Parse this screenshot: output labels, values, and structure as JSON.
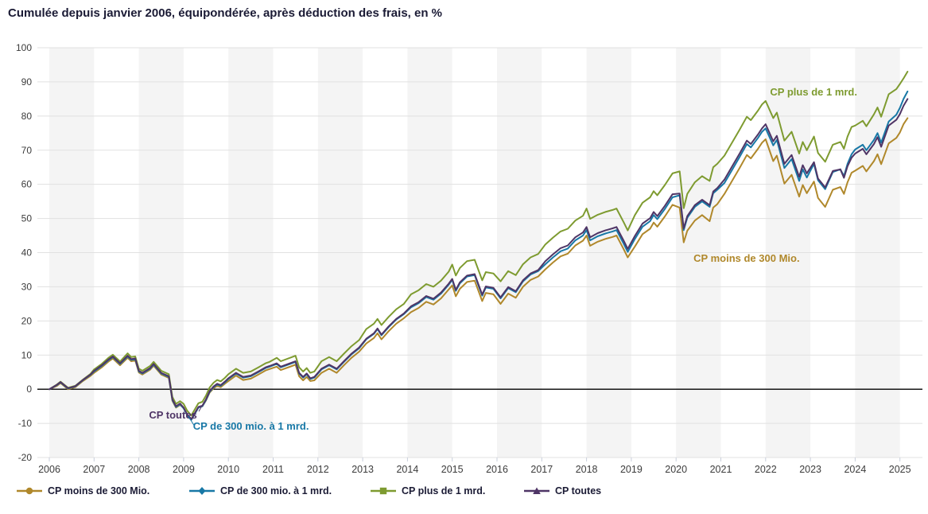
{
  "header": {
    "title": "Cumulée depuis janvier 2006, équipondérée, après déduction des frais, en %"
  },
  "chart_data": {
    "type": "line",
    "title": "Cumulée depuis janvier 2006, équipondérée, après déduction des frais, en %",
    "ylabel": "",
    "xlabel": "",
    "ylim": [
      -20,
      100
    ],
    "ytick_step": 10,
    "grid": "horizontal",
    "shaded_year_bands": "even years 2006-2024",
    "legend_position": "bottom",
    "yticks": [
      "100",
      "90",
      "80",
      "70",
      "60",
      "50",
      "40",
      "30",
      "20",
      "10",
      "0",
      "-10",
      "-20"
    ],
    "xticks": [
      "2006",
      "2007",
      "2008",
      "2009",
      "2010",
      "2011",
      "2012",
      "2013",
      "2014",
      "2015",
      "2016",
      "2017",
      "2018",
      "2019",
      "2020",
      "2021",
      "2022",
      "2023",
      "2024",
      "2025"
    ],
    "colors": {
      "band": "#F4F4F4",
      "grid": "#E1E1E1",
      "zero_line": "#000000",
      "axis_text": "#3C3C3C",
      "tick_mark": "#C9CFDB",
      "heading_text": "#1B1B35"
    },
    "x": [
      2006.0,
      2006.17,
      2006.25,
      2006.42,
      2006.58,
      2006.75,
      2006.92,
      2007.0,
      2007.17,
      2007.33,
      2007.42,
      2007.58,
      2007.75,
      2007.83,
      2007.92,
      2008.0,
      2008.08,
      2008.25,
      2008.33,
      2008.5,
      2008.67,
      2008.75,
      2008.83,
      2008.92,
      2009.0,
      2009.08,
      2009.17,
      2009.25,
      2009.33,
      2009.42,
      2009.5,
      2009.58,
      2009.67,
      2009.75,
      2009.83,
      2009.92,
      2010.0,
      2010.17,
      2010.33,
      2010.5,
      2010.67,
      2010.83,
      2010.92,
      2011.08,
      2011.17,
      2011.42,
      2011.5,
      2011.58,
      2011.67,
      2011.75,
      2011.83,
      2011.92,
      2012.08,
      2012.25,
      2012.42,
      2012.58,
      2012.75,
      2012.92,
      2013.08,
      2013.25,
      2013.33,
      2013.42,
      2013.58,
      2013.75,
      2013.92,
      2014.08,
      2014.25,
      2014.42,
      2014.58,
      2014.75,
      2014.92,
      2015.0,
      2015.08,
      2015.17,
      2015.33,
      2015.5,
      2015.67,
      2015.75,
      2015.92,
      2016.08,
      2016.25,
      2016.42,
      2016.58,
      2016.75,
      2016.92,
      2017.08,
      2017.25,
      2017.42,
      2017.58,
      2017.75,
      2017.92,
      2018.0,
      2018.08,
      2018.25,
      2018.42,
      2018.58,
      2018.67,
      2018.83,
      2018.92,
      2019.08,
      2019.25,
      2019.42,
      2019.5,
      2019.58,
      2019.75,
      2019.92,
      2020.08,
      2020.17,
      2020.25,
      2020.42,
      2020.58,
      2020.75,
      2020.83,
      2020.92,
      2021.08,
      2021.25,
      2021.42,
      2021.58,
      2021.67,
      2021.83,
      2021.92,
      2022.0,
      2022.17,
      2022.25,
      2022.42,
      2022.58,
      2022.75,
      2022.83,
      2022.92,
      2023.08,
      2023.17,
      2023.33,
      2023.5,
      2023.67,
      2023.75,
      2023.83,
      2023.92,
      2024.0,
      2024.17,
      2024.25,
      2024.42,
      2024.5,
      2024.58,
      2024.75,
      2024.92,
      2025.0,
      2025.08,
      2025.17
    ],
    "series": [
      {
        "id": "moins300",
        "name": "CP moins de 300 Mio.",
        "color": "#B0882B",
        "marker": "circle",
        "values": [
          0,
          1.0,
          1.8,
          0.0,
          0.6,
          2.4,
          3.9,
          4.8,
          6.4,
          8.2,
          9.0,
          7.0,
          9.2,
          8.2,
          8.4,
          4.9,
          4.3,
          5.7,
          6.9,
          4.3,
          3.3,
          -3.4,
          -5.4,
          -4.6,
          -5.4,
          -7.4,
          -8.8,
          -7.0,
          -5.3,
          -5.0,
          -3.3,
          -1.0,
          0.3,
          1.0,
          0.6,
          1.6,
          2.4,
          4.0,
          2.7,
          3.1,
          4.3,
          5.5,
          5.9,
          6.6,
          5.6,
          6.8,
          7.2,
          3.8,
          2.6,
          3.6,
          2.4,
          2.6,
          4.8,
          6.0,
          4.8,
          7.0,
          9.2,
          11.0,
          13.4,
          15.0,
          16.4,
          14.6,
          17.0,
          19.2,
          20.8,
          22.6,
          23.8,
          25.6,
          24.8,
          26.6,
          29.2,
          30.4,
          27.2,
          29.4,
          31.4,
          31.8,
          25.8,
          28.2,
          27.8,
          25.0,
          28.0,
          26.8,
          30.0,
          32.0,
          33.0,
          35.1,
          37.1,
          38.9,
          39.7,
          42.1,
          43.5,
          45.0,
          42.0,
          43.2,
          44.0,
          44.6,
          45.0,
          41.0,
          38.6,
          41.8,
          45.4,
          47.0,
          48.8,
          47.6,
          50.6,
          54.0,
          53.2,
          43.0,
          46.4,
          49.4,
          51.0,
          49.2,
          53.2,
          54.2,
          57.2,
          61.0,
          64.8,
          68.6,
          67.6,
          70.4,
          72.2,
          73.2,
          66.8,
          68.4,
          60.2,
          62.8,
          56.4,
          59.8,
          57.4,
          60.8,
          56.0,
          53.4,
          58.4,
          59.2,
          57.2,
          60.6,
          63.4,
          64.0,
          65.4,
          63.8,
          66.8,
          68.8,
          65.9,
          72.0,
          73.6,
          75.2,
          77.6,
          79.4
        ]
      },
      {
        "id": "de300a1",
        "name": "CP de 300 mio. à 1 mrd.",
        "color": "#1878A6",
        "marker": "diamond",
        "values": [
          0,
          1.2,
          2.0,
          0.2,
          0.8,
          2.6,
          4.2,
          5.2,
          6.8,
          8.6,
          9.4,
          7.4,
          9.6,
          8.6,
          8.8,
          5.2,
          4.6,
          6.0,
          7.2,
          4.6,
          3.6,
          -3.2,
          -5.2,
          -4.4,
          -5.6,
          -7.6,
          -9.0,
          -7.2,
          -5.4,
          -5.0,
          -3.2,
          -0.8,
          0.6,
          1.4,
          1.0,
          2.0,
          3.0,
          4.6,
          3.4,
          3.8,
          5.0,
          6.2,
          6.6,
          7.4,
          6.4,
          7.6,
          8.0,
          4.6,
          3.4,
          4.4,
          3.0,
          3.4,
          5.8,
          7.0,
          5.8,
          8.0,
          10.2,
          12.0,
          14.6,
          16.2,
          17.6,
          15.8,
          18.2,
          20.4,
          22.0,
          24.0,
          25.2,
          27.0,
          26.2,
          28.0,
          30.6,
          32.0,
          28.8,
          31.0,
          33.0,
          33.4,
          27.4,
          29.8,
          29.4,
          26.6,
          29.6,
          28.4,
          31.6,
          33.6,
          34.6,
          36.6,
          38.6,
          40.4,
          41.2,
          43.6,
          45.0,
          46.6,
          43.6,
          44.8,
          45.6,
          46.2,
          46.6,
          42.6,
          40.2,
          44.0,
          47.6,
          49.2,
          51.0,
          49.8,
          52.8,
          56.2,
          56.8,
          46.6,
          50.2,
          53.4,
          55.0,
          53.4,
          57.4,
          58.4,
          60.4,
          64.2,
          68.0,
          71.8,
          70.8,
          73.6,
          75.4,
          76.4,
          71.4,
          73.0,
          64.8,
          67.4,
          61.0,
          64.4,
          62.0,
          66.0,
          61.2,
          58.6,
          63.6,
          64.4,
          62.4,
          66.0,
          68.8,
          70.2,
          71.6,
          70.0,
          73.0,
          75.0,
          72.2,
          78.4,
          80.4,
          82.4,
          85.0,
          87.2
        ]
      },
      {
        "id": "plus1",
        "name": "CP plus de 1 mrd.",
        "color": "#7E9B30",
        "marker": "square",
        "values": [
          0,
          1.4,
          2.2,
          0.4,
          1.0,
          2.8,
          4.5,
          5.8,
          7.4,
          9.3,
          10.1,
          8.1,
          10.5,
          9.4,
          9.6,
          6.0,
          5.4,
          6.8,
          8.0,
          5.4,
          4.4,
          -2.3,
          -4.3,
          -3.5,
          -4.3,
          -6.3,
          -7.7,
          -5.9,
          -4.1,
          -3.7,
          -1.9,
          0.5,
          1.9,
          2.7,
          2.3,
          3.3,
          4.4,
          6.0,
          4.8,
          5.2,
          6.4,
          7.6,
          8.0,
          9.2,
          8.2,
          9.4,
          9.8,
          6.4,
          5.2,
          6.2,
          4.8,
          5.2,
          8.2,
          9.4,
          8.2,
          10.4,
          12.6,
          14.4,
          17.6,
          19.2,
          20.6,
          18.8,
          21.2,
          23.4,
          25.0,
          27.8,
          29.0,
          30.8,
          30.0,
          31.8,
          34.4,
          36.5,
          33.3,
          35.5,
          37.5,
          37.9,
          31.9,
          34.3,
          33.9,
          31.6,
          34.6,
          33.4,
          36.6,
          38.6,
          39.6,
          42.4,
          44.4,
          46.2,
          47.0,
          49.4,
          50.8,
          52.9,
          49.9,
          51.1,
          51.9,
          52.5,
          52.9,
          48.9,
          46.5,
          51.0,
          54.6,
          56.2,
          58.0,
          56.8,
          59.8,
          63.2,
          63.8,
          53.0,
          57.2,
          60.6,
          62.4,
          61.0,
          65.0,
          66.0,
          68.4,
          72.2,
          76.0,
          79.8,
          78.8,
          81.6,
          83.4,
          84.4,
          79.4,
          81.0,
          72.8,
          75.4,
          69.0,
          72.4,
          70.0,
          74.0,
          69.2,
          66.6,
          71.6,
          72.4,
          70.4,
          74.0,
          76.8,
          77.2,
          78.6,
          77.0,
          80.5,
          82.5,
          79.8,
          86.4,
          87.9,
          89.4,
          91.0,
          93.0
        ]
      },
      {
        "id": "toutes",
        "name": "CP toutes",
        "color": "#4F3566",
        "marker": "triangle",
        "values": [
          0,
          1.3,
          2.1,
          0.3,
          0.9,
          2.7,
          4.3,
          5.4,
          7.0,
          8.8,
          9.6,
          7.6,
          9.8,
          8.8,
          9.0,
          5.4,
          4.8,
          6.2,
          7.4,
          4.8,
          3.8,
          -3.0,
          -5.0,
          -4.2,
          -5.4,
          -7.4,
          -8.8,
          -7.0,
          -5.2,
          -4.8,
          -3.0,
          -0.6,
          0.8,
          1.6,
          1.2,
          2.2,
          3.2,
          4.8,
          3.6,
          4.0,
          5.2,
          6.4,
          6.8,
          7.6,
          6.6,
          7.8,
          8.2,
          4.8,
          3.6,
          4.6,
          3.2,
          3.6,
          6.0,
          7.2,
          6.0,
          8.2,
          10.4,
          12.2,
          14.8,
          16.4,
          17.8,
          16.0,
          18.4,
          20.6,
          22.2,
          24.3,
          25.5,
          27.3,
          26.5,
          28.3,
          30.9,
          32.3,
          29.1,
          31.3,
          33.3,
          33.7,
          27.7,
          30.1,
          29.7,
          26.9,
          29.9,
          28.7,
          31.9,
          33.9,
          34.9,
          37.5,
          39.5,
          41.3,
          42.1,
          44.5,
          45.9,
          47.5,
          44.5,
          45.7,
          46.5,
          47.1,
          47.5,
          43.5,
          41.1,
          44.9,
          48.5,
          50.1,
          51.9,
          50.7,
          53.7,
          57.1,
          57.3,
          47.1,
          50.7,
          53.9,
          55.5,
          53.9,
          57.9,
          58.9,
          61.4,
          65.2,
          69.0,
          72.8,
          71.8,
          74.6,
          76.4,
          77.6,
          72.6,
          74.2,
          66.0,
          68.6,
          62.2,
          65.6,
          63.2,
          66.5,
          61.7,
          59.1,
          63.9,
          64.4,
          61.9,
          65.3,
          67.8,
          69.0,
          70.4,
          68.8,
          71.8,
          73.8,
          71.0,
          77.2,
          78.9,
          80.6,
          83.0,
          85.0
        ]
      }
    ],
    "draw_order": [
      "plus1",
      "moins300",
      "de300a1",
      "toutes"
    ],
    "annotations": [
      {
        "text": "CP plus de 1 mrd.",
        "series": "plus1",
        "x": 2022.1,
        "y": 86.0,
        "anchor": "start"
      },
      {
        "text": "CP moins de 300 Mio.",
        "series": "moins300",
        "x": 2020.39,
        "y": 37.3,
        "anchor": "start"
      },
      {
        "text": "CP toutes",
        "series": "toutes",
        "x": 2009.3,
        "y": -8.6,
        "anchor": "end",
        "leader": [
          [
            2009.34,
            -6.5
          ],
          [
            2009.46,
            -3.7
          ]
        ]
      },
      {
        "text": "CP de 300 mio. à 1 mrd.",
        "series": "de300a1",
        "x": 2009.21,
        "y": -11.9,
        "anchor": "start",
        "leader": [
          [
            2009.23,
            -10.5
          ],
          [
            2009.1,
            -7.8
          ]
        ]
      }
    ]
  },
  "legend": {
    "items": [
      "CP moins de 300 Mio.",
      "CP de 300 mio. à 1 mrd.",
      "CP plus de 1 mrd.",
      "CP toutes"
    ]
  }
}
